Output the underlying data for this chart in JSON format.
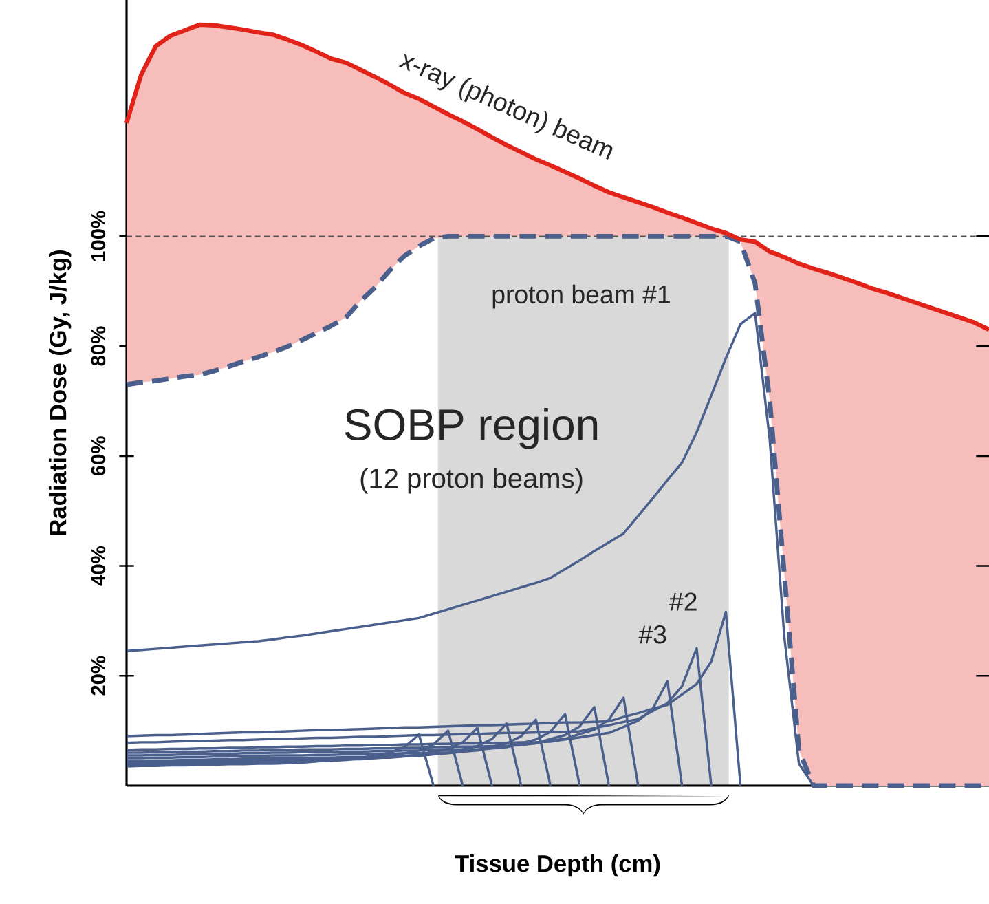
{
  "chart_data": {
    "type": "line",
    "xlabel": "Tissue Depth (cm)",
    "ylabel": "Radiation Dose (Gy, J/kg)",
    "ylim": [
      0,
      143
    ],
    "tick_labels": "y",
    "categories": [
      null,
      null,
      null,
      null,
      null,
      null,
      null,
      null,
      null,
      null,
      null,
      null,
      null,
      null,
      null,
      null,
      null,
      null,
      null,
      null,
      null,
      null,
      null,
      null,
      null,
      null,
      null,
      null,
      null,
      null,
      null,
      null,
      null,
      null,
      null,
      null,
      null,
      null,
      null,
      null,
      null,
      null,
      null,
      null,
      null,
      null,
      null,
      null,
      null,
      null,
      null,
      null,
      null,
      null,
      null,
      null,
      null,
      null,
      null,
      null
    ],
    "yticks": [
      {
        "value": 20,
        "label": "20%"
      },
      {
        "value": 40,
        "label": "40%"
      },
      {
        "value": 60,
        "label": "60%"
      },
      {
        "value": 80,
        "label": "80%"
      },
      {
        "value": 100,
        "label": "100%"
      }
    ],
    "annotations": [
      "x-ray (photon) beam",
      "proton beam #1",
      "#2",
      "#3",
      "SOBP region",
      "(12 proton beams)"
    ],
    "ref_lines": [
      {
        "axis": "y",
        "value": 100,
        "color": "#555555",
        "line_style": "dashed"
      }
    ],
    "series": [
      {
        "type": "area",
        "color": "#e2231a",
        "values": [
          120.6,
          129.4,
          134.6,
          136.5,
          137.5,
          138.5,
          138.4,
          138,
          137.6,
          137.1,
          136.7,
          135.8,
          134.8,
          133.6,
          132.3,
          131.6,
          130.3,
          129,
          127.6,
          126.1,
          125,
          123.6,
          122.2,
          120.9,
          119.5,
          118,
          116.6,
          115.3,
          114,
          112.9,
          111.7,
          110.5,
          109.2,
          108,
          107.1,
          106.2,
          105.3,
          104.3,
          103.4,
          102.4,
          101.4,
          100.6,
          99.4,
          99,
          97.2,
          96.2,
          95,
          94.1,
          93.3,
          92.4,
          91.5,
          90.5,
          89.7,
          88.8,
          87.9,
          87,
          86.1,
          85.2,
          84.3,
          83
        ]
      },
      {
        "line_style": "dashed",
        "color": "#4a5f8c",
        "values": [
          73,
          73.4,
          73.7,
          74.1,
          74.5,
          74.8,
          75.5,
          76.3,
          77.2,
          78,
          78.9,
          79.9,
          81.1,
          82.4,
          83.7,
          85.2,
          88.2,
          90.7,
          93.8,
          96.4,
          98.2,
          99.6,
          100,
          100,
          100,
          100,
          100,
          100,
          100,
          100,
          100,
          100,
          100,
          100,
          100,
          100,
          100,
          100,
          100,
          100,
          100,
          100,
          99,
          91.4,
          70.1,
          38.4,
          6.4,
          0,
          0,
          0,
          0,
          0,
          0,
          0,
          0,
          0,
          0,
          0,
          0,
          0
        ]
      },
      {
        "color": "#4a5f8c",
        "values": [
          24.5,
          24.7,
          24.9,
          25.1,
          25.3,
          25.5,
          25.7,
          25.9,
          26.1,
          26.3,
          26.6,
          27,
          27.3,
          27.7,
          28.1,
          28.5,
          28.9,
          29.3,
          29.7,
          30.1,
          30.5,
          31.3,
          32.1,
          32.9,
          33.7,
          34.5,
          35.3,
          36.1,
          36.9,
          37.8,
          39.4,
          41,
          42.7,
          44.3,
          45.9,
          49.1,
          52.3,
          55.6,
          58.8,
          64.3,
          71,
          77.8,
          84,
          86,
          63,
          27,
          4,
          0,
          null,
          null,
          null,
          null,
          null,
          null,
          null,
          null,
          null,
          null,
          null,
          null
        ]
      },
      {
        "color": "#4a5f8c",
        "values": [
          9,
          9.1,
          9.2,
          9.2,
          9.3,
          9.4,
          9.5,
          9.6,
          9.7,
          9.7,
          9.8,
          9.9,
          10,
          10.1,
          10.1,
          10.2,
          10.3,
          10.4,
          10.5,
          10.6,
          10.6,
          10.7,
          10.8,
          10.9,
          11,
          11,
          11.1,
          11.2,
          11.3,
          11.4,
          11.5,
          11.5,
          11.6,
          11.7,
          12.5,
          13.2,
          14,
          14.7,
          16.6,
          18.5,
          22.6,
          31.6,
          0,
          null,
          null,
          null,
          null,
          null,
          null,
          null,
          null,
          null,
          null,
          null,
          null,
          null,
          null,
          null,
          null,
          null
        ]
      },
      {
        "color": "#4a5f8c",
        "values": [
          7.8,
          7.9,
          7.9,
          8,
          8.1,
          8.1,
          8.2,
          8.3,
          8.3,
          8.4,
          8.5,
          8.5,
          8.6,
          8.7,
          8.7,
          8.8,
          8.9,
          8.9,
          9,
          9.1,
          9.2,
          9.2,
          9.3,
          9.4,
          9.4,
          9.5,
          9.6,
          9.6,
          9.7,
          9.8,
          9.8,
          9.9,
          10.5,
          11,
          11.6,
          12.1,
          13.6,
          15,
          18.1,
          25,
          0,
          null,
          null,
          null,
          null,
          null,
          null,
          null,
          null,
          null,
          null,
          null,
          null,
          null,
          null,
          null,
          null,
          null,
          null,
          null
        ]
      },
      {
        "color": "#4a5f8c",
        "values": [
          6.5,
          6.6,
          6.6,
          6.7,
          6.7,
          6.8,
          6.8,
          6.9,
          6.9,
          7,
          7,
          7.1,
          7.1,
          7.2,
          7.2,
          7.3,
          7.3,
          7.4,
          7.4,
          7.5,
          7.5,
          7.6,
          7.6,
          7.7,
          7.7,
          7.8,
          7.8,
          7.9,
          7.9,
          8,
          8.4,
          8.8,
          9.2,
          9.6,
          10.7,
          11.8,
          14,
          19,
          0,
          null,
          null,
          null,
          null,
          null,
          null,
          null,
          null,
          null,
          null,
          null,
          null,
          null,
          null,
          null,
          null,
          null,
          null,
          null,
          null,
          null
        ]
      },
      {
        "color": "#4a5f8c",
        "values": [
          6,
          6,
          6.1,
          6.1,
          6.2,
          6.2,
          6.3,
          6.3,
          6.4,
          6.4,
          6.5,
          6.5,
          6.6,
          6.6,
          6.6,
          6.7,
          6.7,
          6.8,
          6.8,
          6.9,
          6.9,
          7,
          7,
          7.1,
          7.1,
          7.2,
          7.2,
          7.5,
          7.8,
          8.2,
          8.5,
          9.4,
          10.2,
          12,
          16,
          0,
          null,
          null,
          null,
          null,
          null,
          null,
          null,
          null,
          null,
          null,
          null,
          null,
          null,
          null,
          null,
          null,
          null,
          null,
          null,
          null,
          null,
          null,
          null,
          null
        ]
      },
      {
        "color": "#4a5f8c",
        "values": [
          5.5,
          5.5,
          5.6,
          5.6,
          5.7,
          5.7,
          5.8,
          5.8,
          5.9,
          5.9,
          6,
          6,
          6.1,
          6.1,
          6.1,
          6.2,
          6.2,
          6.3,
          6.3,
          6.4,
          6.4,
          6.5,
          6.5,
          6.6,
          6.6,
          6.9,
          7.2,
          7.4,
          7.7,
          8.5,
          9.2,
          10.8,
          14.3,
          0,
          null,
          null,
          null,
          null,
          null,
          null,
          null,
          null,
          null,
          null,
          null,
          null,
          null,
          null,
          null,
          null,
          null,
          null,
          null,
          null,
          null,
          null,
          null,
          null,
          null,
          null
        ]
      },
      {
        "color": "#4a5f8c",
        "values": [
          5,
          5,
          5.1,
          5.1,
          5.2,
          5.2,
          5.3,
          5.3,
          5.4,
          5.4,
          5.5,
          5.5,
          5.5,
          5.6,
          5.6,
          5.7,
          5.7,
          5.8,
          5.8,
          5.9,
          5.9,
          6,
          6,
          6.3,
          6.5,
          6.8,
          7,
          7.7,
          8.4,
          9.8,
          13,
          0,
          null,
          null,
          null,
          null,
          null,
          null,
          null,
          null,
          null,
          null,
          null,
          null,
          null,
          null,
          null,
          null,
          null,
          null,
          null,
          null,
          null,
          null,
          null,
          null,
          null,
          null,
          null,
          null
        ]
      },
      {
        "color": "#4a5f8c",
        "values": [
          4.5,
          4.5,
          4.6,
          4.6,
          4.7,
          4.7,
          4.8,
          4.8,
          4.9,
          4.9,
          5,
          5,
          5,
          5.1,
          5.1,
          5.2,
          5.2,
          5.3,
          5.3,
          5.4,
          5.4,
          5.7,
          5.9,
          6.2,
          6.4,
          7.1,
          7.7,
          9,
          12,
          0,
          null,
          null,
          null,
          null,
          null,
          null,
          null,
          null,
          null,
          null,
          null,
          null,
          null,
          null,
          null,
          null,
          null,
          null,
          null,
          null,
          null,
          null,
          null,
          null,
          null,
          null,
          null,
          null,
          null,
          null
        ]
      },
      {
        "color": "#4a5f8c",
        "values": [
          4.2,
          4.3,
          4.3,
          4.4,
          4.4,
          4.5,
          4.5,
          4.6,
          4.6,
          4.7,
          4.7,
          4.8,
          4.8,
          4.9,
          4.9,
          5,
          5,
          5.1,
          5.1,
          5.3,
          5.6,
          5.8,
          6,
          6.6,
          7.2,
          8.5,
          11.3,
          0,
          null,
          null,
          null,
          null,
          null,
          null,
          null,
          null,
          null,
          null,
          null,
          null,
          null,
          null,
          null,
          null,
          null,
          null,
          null,
          null,
          null,
          null,
          null,
          null,
          null,
          null,
          null,
          null,
          null,
          null,
          null,
          null
        ]
      },
      {
        "color": "#4a5f8c",
        "values": [
          4,
          4,
          4.1,
          4.2,
          4.2,
          4.3,
          4.3,
          4.4,
          4.4,
          4.5,
          4.5,
          4.6,
          4.6,
          4.7,
          4.7,
          4.8,
          4.8,
          5,
          5.2,
          5.4,
          5.6,
          6.2,
          6.7,
          7.9,
          10.5,
          0,
          null,
          null,
          null,
          null,
          null,
          null,
          null,
          null,
          null,
          null,
          null,
          null,
          null,
          null,
          null,
          null,
          null,
          null,
          null,
          null,
          null,
          null,
          null,
          null,
          null,
          null,
          null,
          null,
          null,
          null,
          null,
          null,
          null,
          null
        ]
      },
      {
        "color": "#4a5f8c",
        "values": [
          3.8,
          3.9,
          3.9,
          4,
          4,
          4.1,
          4.1,
          4.2,
          4.2,
          4.3,
          4.3,
          4.4,
          4.4,
          4.5,
          4.5,
          4.7,
          4.9,
          5.2,
          5.4,
          5.9,
          6.4,
          7.5,
          10,
          0,
          null,
          null,
          null,
          null,
          null,
          null,
          null,
          null,
          null,
          null,
          null,
          null,
          null,
          null,
          null,
          null,
          null,
          null,
          null,
          null,
          null,
          null,
          null,
          null,
          null,
          null,
          null,
          null,
          null,
          null,
          null,
          null,
          null,
          null,
          null,
          null
        ]
      },
      {
        "color": "#4a5f8c",
        "values": [
          3.5,
          3.6,
          3.6,
          3.7,
          3.7,
          3.8,
          3.8,
          3.9,
          3.9,
          4,
          4,
          4.1,
          4.2,
          4.4,
          4.6,
          4.8,
          5,
          5.5,
          6,
          7,
          9.3,
          0,
          null,
          null,
          null,
          null,
          null,
          null,
          null,
          null,
          null,
          null,
          null,
          null,
          null,
          null,
          null,
          null,
          null,
          null,
          null,
          null,
          null,
          null,
          null,
          null,
          null,
          null,
          null,
          null,
          null,
          null,
          null,
          null,
          null,
          null,
          null,
          null,
          null,
          null
        ]
      }
    ]
  }
}
